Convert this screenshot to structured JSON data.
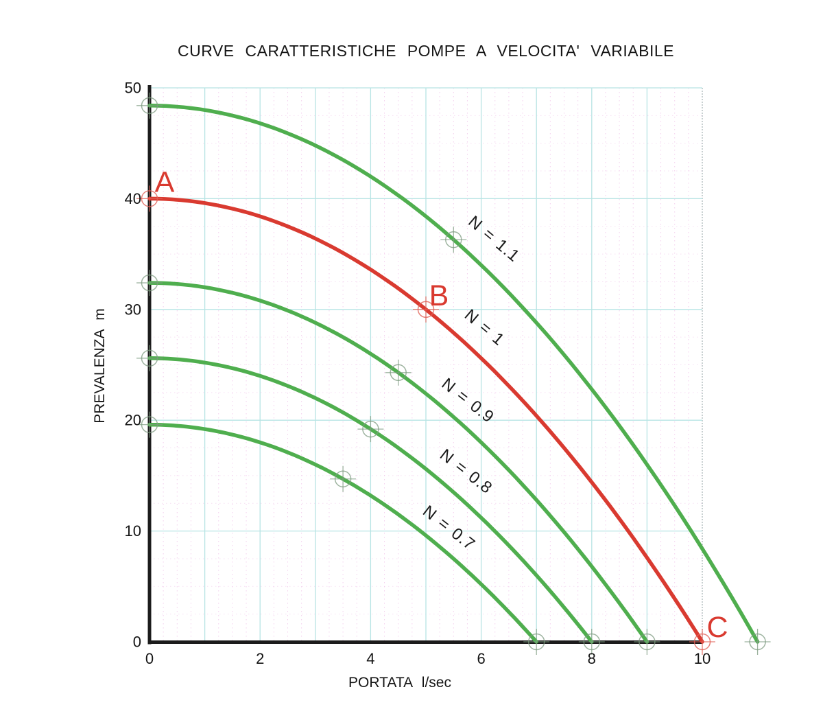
{
  "window": {
    "background": "#ffffff"
  },
  "chart_data": {
    "type": "line",
    "title": "CURVE CARATTERISTICHE POMPE A VELOCITA' VARIABILE",
    "xlabel": "PORTATA l/sec",
    "ylabel": "PREVALENZA m",
    "xlim": [
      0,
      11
    ],
    "ylim": [
      0,
      50
    ],
    "x_ticks": [
      0,
      2,
      4,
      6,
      8,
      10
    ],
    "y_ticks": [
      0,
      10,
      20,
      30,
      40,
      50
    ],
    "axis_color": "#1c1c1c",
    "grid": {
      "major_color": "#b7e4e4",
      "right_edge_color": "#aab6b8",
      "minor_color": "#efc0e8",
      "x_major_step": 1,
      "y_major_step": 10,
      "x_minor_step": 0.25,
      "y_minor_step": 2.5
    },
    "series": [
      {
        "name": "N = 1.1",
        "speed_ratio": 1.1,
        "color": "#4fae4e",
        "shutoff_head_m": 48.4,
        "max_flow_ls": 11,
        "markers": [
          [
            0,
            48.4
          ],
          [
            5.5,
            36.3
          ],
          [
            11,
            0
          ]
        ],
        "label": {
          "q": 6.17,
          "h": 36.0,
          "angle": 40
        }
      },
      {
        "name": "N = 1",
        "speed_ratio": 1.0,
        "color": "#d93a30",
        "shutoff_head_m": 40,
        "max_flow_ls": 10,
        "markers": [
          [
            0,
            40
          ],
          [
            5,
            30
          ],
          [
            10,
            0
          ]
        ],
        "label": {
          "q": 6.0,
          "h": 28.0,
          "angle": 40
        }
      },
      {
        "name": "N = 0.9",
        "speed_ratio": 0.9,
        "color": "#4fae4e",
        "shutoff_head_m": 32.4,
        "max_flow_ls": 9,
        "markers": [
          [
            0,
            32.4
          ],
          [
            4.5,
            24.3
          ],
          [
            9,
            0
          ]
        ],
        "label": {
          "q": 5.7,
          "h": 21.4,
          "angle": 38
        }
      },
      {
        "name": "N = 0.8",
        "speed_ratio": 0.8,
        "color": "#4fae4e",
        "shutoff_head_m": 25.6,
        "max_flow_ls": 8,
        "markers": [
          [
            0,
            25.6
          ],
          [
            4,
            19.2
          ],
          [
            8,
            0
          ]
        ],
        "label": {
          "q": 5.67,
          "h": 15.0,
          "angle": 38
        }
      },
      {
        "name": "N = 0.7",
        "speed_ratio": 0.7,
        "color": "#4fae4e",
        "shutoff_head_m": 19.6,
        "max_flow_ls": 7,
        "markers": [
          [
            0,
            19.6
          ],
          [
            3.5,
            14.7
          ],
          [
            7,
            0
          ]
        ],
        "label": {
          "q": 5.36,
          "h": 9.9,
          "angle": 38
        }
      }
    ],
    "annotated_points": [
      {
        "label": "A",
        "q": 0,
        "h": 40,
        "color": "#d93a30"
      },
      {
        "label": "B",
        "q": 5,
        "h": 30,
        "color": "#d93a30"
      },
      {
        "label": "C",
        "q": 10,
        "h": 0,
        "color": "#d93a30"
      }
    ]
  }
}
